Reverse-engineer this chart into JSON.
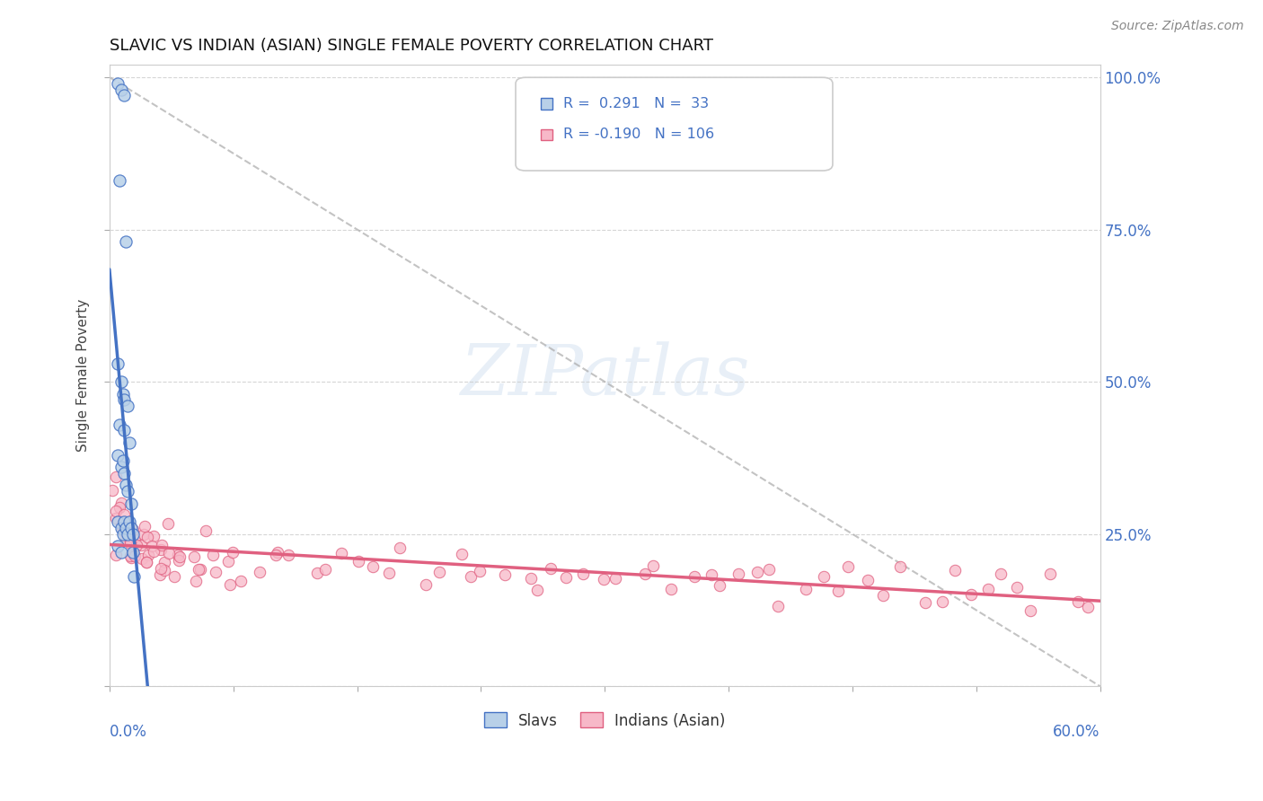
{
  "title": "SLAVIC VS INDIAN (ASIAN) SINGLE FEMALE POVERTY CORRELATION CHART",
  "source_text": "Source: ZipAtlas.com",
  "ylabel": "Single Female Poverty",
  "legend_labels": [
    "Slavs",
    "Indians (Asian)"
  ],
  "R_slavs": 0.291,
  "N_slavs": 33,
  "R_indians": -0.19,
  "N_indians": 106,
  "slavs_color": "#b8d0e8",
  "indians_color": "#f7b8c8",
  "slavs_line_color": "#4472c4",
  "indians_line_color": "#e06080",
  "legend_text_color": "#4472c4",
  "xlim": [
    0.0,
    0.6
  ],
  "ylim": [
    0.0,
    1.0
  ],
  "slavs_x": [
    0.005,
    0.007,
    0.009,
    0.006,
    0.01,
    0.005,
    0.007,
    0.008,
    0.009,
    0.011,
    0.006,
    0.009,
    0.012,
    0.005,
    0.007,
    0.008,
    0.009,
    0.01,
    0.011,
    0.013,
    0.005,
    0.007,
    0.008,
    0.009,
    0.01,
    0.011,
    0.012,
    0.013,
    0.014,
    0.005,
    0.007,
    0.014,
    0.015
  ],
  "slavs_y": [
    0.99,
    0.98,
    0.97,
    0.83,
    0.73,
    0.53,
    0.5,
    0.48,
    0.47,
    0.46,
    0.43,
    0.42,
    0.4,
    0.38,
    0.36,
    0.37,
    0.35,
    0.33,
    0.32,
    0.3,
    0.27,
    0.26,
    0.25,
    0.27,
    0.26,
    0.25,
    0.27,
    0.26,
    0.25,
    0.23,
    0.22,
    0.22,
    0.18
  ],
  "indians_x": [
    0.002,
    0.003,
    0.004,
    0.005,
    0.006,
    0.007,
    0.008,
    0.009,
    0.01,
    0.011,
    0.012,
    0.013,
    0.014,
    0.015,
    0.016,
    0.017,
    0.018,
    0.019,
    0.02,
    0.021,
    0.022,
    0.023,
    0.024,
    0.025,
    0.026,
    0.027,
    0.028,
    0.029,
    0.03,
    0.032,
    0.034,
    0.036,
    0.038,
    0.04,
    0.042,
    0.044,
    0.046,
    0.048,
    0.05,
    0.055,
    0.06,
    0.065,
    0.07,
    0.075,
    0.08,
    0.085,
    0.09,
    0.095,
    0.1,
    0.11,
    0.12,
    0.13,
    0.14,
    0.15,
    0.16,
    0.17,
    0.18,
    0.19,
    0.2,
    0.21,
    0.22,
    0.23,
    0.24,
    0.25,
    0.26,
    0.27,
    0.28,
    0.29,
    0.3,
    0.31,
    0.32,
    0.33,
    0.34,
    0.35,
    0.36,
    0.37,
    0.38,
    0.39,
    0.4,
    0.41,
    0.42,
    0.43,
    0.44,
    0.45,
    0.46,
    0.47,
    0.48,
    0.49,
    0.5,
    0.51,
    0.52,
    0.53,
    0.54,
    0.55,
    0.56,
    0.57,
    0.58,
    0.59,
    0.005,
    0.01,
    0.015,
    0.02,
    0.03,
    0.04,
    0.05,
    0.06
  ],
  "indians_y": [
    0.28,
    0.32,
    0.25,
    0.3,
    0.22,
    0.26,
    0.24,
    0.28,
    0.23,
    0.26,
    0.24,
    0.22,
    0.25,
    0.23,
    0.22,
    0.25,
    0.2,
    0.23,
    0.25,
    0.22,
    0.24,
    0.21,
    0.23,
    0.22,
    0.24,
    0.21,
    0.23,
    0.2,
    0.22,
    0.21,
    0.23,
    0.2,
    0.22,
    0.21,
    0.23,
    0.2,
    0.22,
    0.19,
    0.21,
    0.2,
    0.22,
    0.2,
    0.21,
    0.19,
    0.22,
    0.2,
    0.19,
    0.21,
    0.2,
    0.19,
    0.21,
    0.18,
    0.2,
    0.19,
    0.21,
    0.18,
    0.2,
    0.19,
    0.18,
    0.2,
    0.19,
    0.18,
    0.2,
    0.19,
    0.17,
    0.19,
    0.18,
    0.17,
    0.19,
    0.18,
    0.17,
    0.19,
    0.18,
    0.17,
    0.19,
    0.16,
    0.18,
    0.17,
    0.19,
    0.16,
    0.18,
    0.17,
    0.16,
    0.18,
    0.17,
    0.16,
    0.18,
    0.15,
    0.17,
    0.16,
    0.18,
    0.15,
    0.17,
    0.16,
    0.15,
    0.17,
    0.16,
    0.15,
    0.35,
    0.27,
    0.23,
    0.25,
    0.2,
    0.27,
    0.23,
    0.26
  ]
}
